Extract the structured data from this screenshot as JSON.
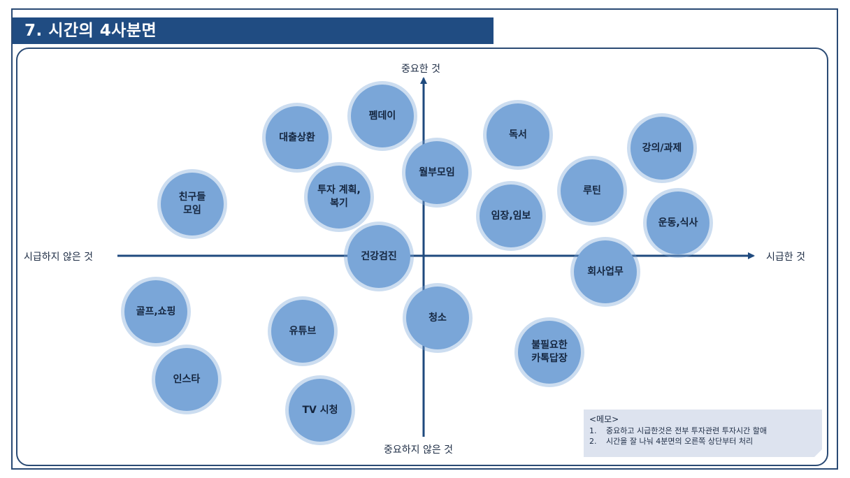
{
  "title": "7. 시간의 4사분면",
  "axes": {
    "top": "중요한 것",
    "bottom": "중요하지 않은 것",
    "left": "시급하지 않은 것",
    "right": "시급한 것"
  },
  "items": [
    {
      "id": "pemdei",
      "label": "펨데이"
    },
    {
      "id": "daechul",
      "label": "대출상환"
    },
    {
      "id": "dokseo",
      "label": "독서"
    },
    {
      "id": "gangui",
      "label": "강의/과제"
    },
    {
      "id": "wolbu",
      "label": "월부모임"
    },
    {
      "id": "tuja",
      "label": "투자 계획,\n복기"
    },
    {
      "id": "chingu",
      "label": "친구들\n모임"
    },
    {
      "id": "rutin",
      "label": "루틴"
    },
    {
      "id": "imjang",
      "label": "임장,임보"
    },
    {
      "id": "undong",
      "label": "운동,식사"
    },
    {
      "id": "geongang",
      "label": "건강검진"
    },
    {
      "id": "hoesa",
      "label": "회사업무"
    },
    {
      "id": "golf",
      "label": "골프,쇼핑"
    },
    {
      "id": "youtube",
      "label": "유튜브"
    },
    {
      "id": "cheongso",
      "label": "청소"
    },
    {
      "id": "bulpil",
      "label": "불필요한\n카톡답장"
    },
    {
      "id": "insta",
      "label": "인스타"
    },
    {
      "id": "tv",
      "label": "TV 시청"
    }
  ],
  "memo": {
    "title": "<메모>",
    "items": [
      {
        "num": "1.",
        "text": "중요하고 시급한것은 전부 투자관련 투자시간 할애"
      },
      {
        "num": "2.",
        "text": "시간을 잘 나눠 4분면의 오른쪽 상단부터 처리"
      }
    ]
  },
  "colors": {
    "title_bg": "#204c82",
    "bubble": "#7aa6d8",
    "axis": "#1f4a7e",
    "memo_bg": "#dde3ef"
  }
}
